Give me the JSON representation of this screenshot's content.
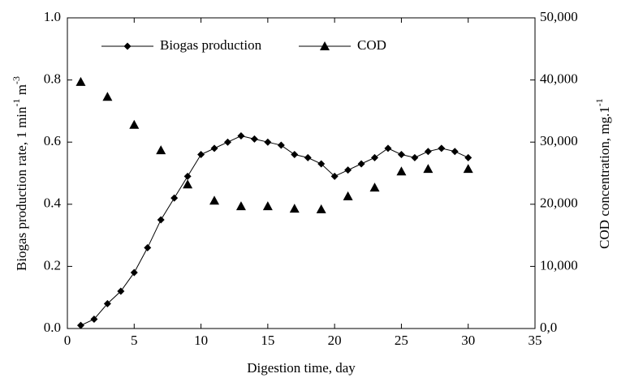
{
  "chart_data": {
    "type": "scatter",
    "x_label": "Digestion time, day",
    "y_label": [
      "Biogas production rate, 1 min",
      "-1",
      " m",
      "-3"
    ],
    "y2_label": [
      "COD concentration, mg.1",
      "-1"
    ],
    "xlim": [
      0,
      35
    ],
    "xticks": [
      0,
      5,
      10,
      15,
      20,
      25,
      30,
      35
    ],
    "ylim": [
      0,
      1
    ],
    "yticks": [
      {
        "value": 0,
        "label": "0.0"
      },
      0.2,
      0.4,
      0.6,
      0.8,
      {
        "value": 1,
        "label": "1.0"
      }
    ],
    "y2lim": [
      0,
      50000
    ],
    "y2ticks": [
      {
        "value": 0,
        "label": "0,0"
      },
      {
        "value": 10000,
        "label": "10,000"
      },
      {
        "value": 20000,
        "label": "20,000"
      },
      {
        "value": 30000,
        "label": "30,000"
      },
      {
        "value": 40000,
        "label": "40,000"
      },
      {
        "value": 50000,
        "label": "50,000"
      }
    ],
    "legend": "upper left",
    "series": [
      {
        "name": "Biogas production",
        "color": "#000000",
        "marker": "diamond",
        "line": true,
        "x": [
          1,
          2,
          3,
          4,
          5,
          6,
          7,
          8,
          9,
          10,
          11,
          12,
          13,
          14,
          15,
          16,
          17,
          18,
          19,
          20,
          21,
          22,
          23,
          24,
          25,
          26,
          27,
          28,
          29,
          30
        ],
        "values": [
          0.01,
          0.03,
          0.08,
          0.12,
          0.18,
          0.26,
          0.35,
          0.42,
          0.49,
          0.56,
          0.58,
          0.6,
          0.62,
          0.61,
          0.6,
          0.59,
          0.56,
          0.55,
          0.53,
          0.49,
          0.51,
          0.53,
          0.55,
          0.58,
          0.56,
          0.55,
          0.57,
          0.58,
          0.57,
          0.55
        ]
      },
      {
        "name": "COD",
        "color": "#000000",
        "marker": "triangle",
        "line": false,
        "axis": "y2",
        "x": [
          1,
          3,
          5,
          7,
          9,
          11,
          13,
          15,
          17,
          19,
          21,
          23,
          25,
          27,
          30
        ],
        "values": [
          39700,
          37300,
          32800,
          28700,
          23200,
          20600,
          19700,
          19700,
          19300,
          19200,
          21300,
          22700,
          25300,
          25700,
          25700
        ]
      }
    ]
  }
}
